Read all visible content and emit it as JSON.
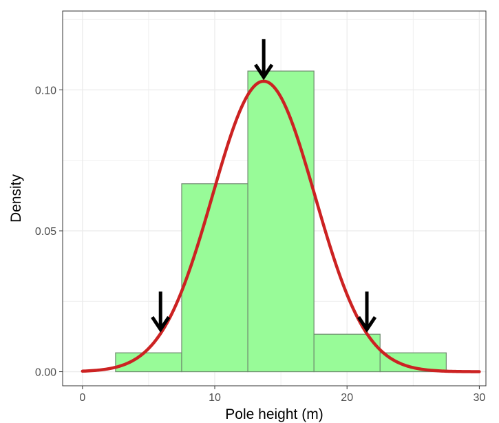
{
  "chart_data": {
    "type": "histogram",
    "xlabel": "Pole height (m)",
    "ylabel": "Density",
    "xlim": [
      -1.5,
      30.5
    ],
    "ylim": [
      -0.005,
      0.128
    ],
    "x_ticks": [
      0,
      10,
      20,
      30
    ],
    "x_tick_labels": [
      "0",
      "10",
      "20",
      "30"
    ],
    "y_ticks": [
      0.0,
      0.05,
      0.1
    ],
    "y_tick_labels": [
      "0.00",
      "0.05",
      "0.10"
    ],
    "grid": true,
    "bins": [
      {
        "x0": 2.5,
        "x1": 7.5,
        "density": 0.0067
      },
      {
        "x0": 7.5,
        "x1": 12.5,
        "density": 0.0667
      },
      {
        "x0": 12.5,
        "x1": 17.5,
        "density": 0.1067
      },
      {
        "x0": 17.5,
        "x1": 22.5,
        "density": 0.0133
      },
      {
        "x0": 22.5,
        "x1": 27.5,
        "density": 0.0067
      }
    ],
    "density_curve": {
      "distribution": "normal",
      "mean": 13.7,
      "sd": 3.87,
      "x_range": [
        0,
        30
      ]
    },
    "annotations": [
      {
        "type": "arrow",
        "x": 5.9,
        "direction": "down"
      },
      {
        "type": "arrow",
        "x": 13.7,
        "direction": "down"
      },
      {
        "type": "arrow",
        "x": 21.5,
        "direction": "down"
      }
    ],
    "colors": {
      "bar_fill": "#98fb98",
      "bar_stroke": "#6e8a6e",
      "curve": "#cc2222",
      "arrow": "#000000",
      "grid": "#ebebeb",
      "panel_border": "#333333"
    }
  }
}
